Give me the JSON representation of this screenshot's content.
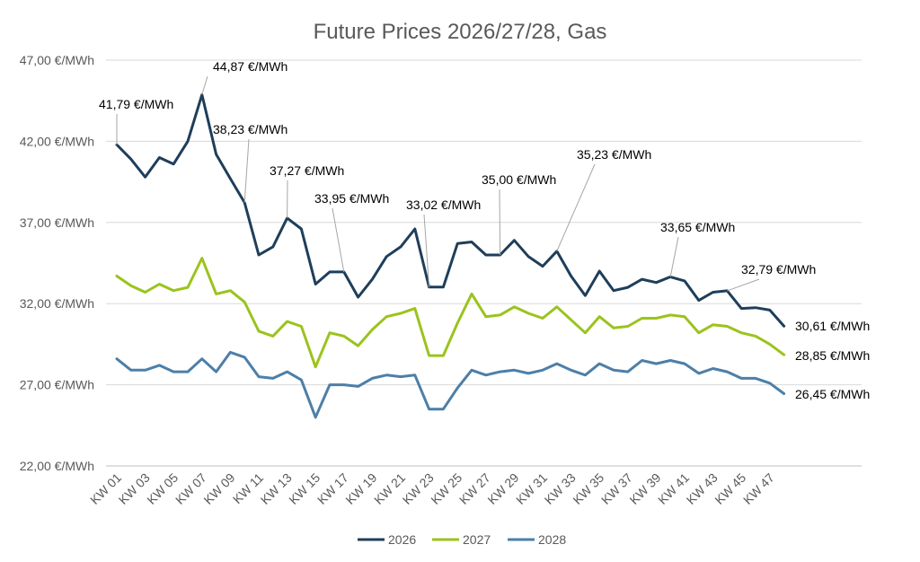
{
  "chart_data": {
    "type": "line",
    "title": "Future Prices 2026/27/28, Gas",
    "xlabel": "",
    "ylabel": "",
    "ylim": [
      22,
      47
    ],
    "yticks": [
      22,
      27,
      32,
      37,
      42,
      47
    ],
    "ytick_labels": [
      "22,00 €/MWh",
      "27,00 €/MWh",
      "32,00 €/MWh",
      "37,00 €/MWh",
      "42,00 €/MWh",
      "47,00 €/MWh"
    ],
    "grid": true,
    "legend_position": "bottom",
    "categories": [
      "KW 01",
      "KW 02",
      "KW 03",
      "KW 04",
      "KW 05",
      "KW 06",
      "KW 07",
      "KW 08",
      "KW 09",
      "KW 10",
      "KW 11",
      "KW 12",
      "KW 13",
      "KW 14",
      "KW 15",
      "KW 16",
      "KW 17",
      "KW 18",
      "KW 19",
      "KW 20",
      "KW 21",
      "KW 22",
      "KW 23",
      "KW 24",
      "KW 25",
      "KW 26",
      "KW 27",
      "KW 28",
      "KW 29",
      "KW 30",
      "KW 31",
      "KW 32",
      "KW 33",
      "KW 34",
      "KW 35",
      "KW 36",
      "KW 37",
      "KW 38",
      "KW 39",
      "KW 40",
      "KW 41",
      "KW 42",
      "KW 43",
      "KW 44",
      "KW 45",
      "KW 46",
      "KW 47",
      "KW 48"
    ],
    "tick_labels": [
      "KW 01",
      "KW 03",
      "KW 05",
      "KW 07",
      "KW 09",
      "KW 11",
      "KW 13",
      "KW 15",
      "KW 17",
      "KW 19",
      "KW 21",
      "KW 23",
      "KW 25",
      "KW 27",
      "KW 29",
      "KW 31",
      "KW 33",
      "KW 35",
      "KW 37",
      "KW 39",
      "KW 41",
      "KW 43",
      "KW 45",
      "KW 47"
    ],
    "series": [
      {
        "name": "2026",
        "color": "#1F3E5A",
        "values": [
          41.79,
          40.9,
          39.8,
          41.0,
          40.6,
          42.0,
          44.87,
          41.2,
          39.7,
          38.23,
          35.0,
          35.5,
          37.27,
          36.6,
          33.2,
          33.95,
          33.95,
          32.4,
          33.5,
          34.9,
          35.5,
          36.6,
          33.02,
          33.02,
          35.7,
          35.8,
          35.0,
          35.0,
          35.9,
          34.9,
          34.3,
          35.23,
          33.7,
          32.5,
          34.0,
          32.8,
          33.0,
          33.5,
          33.3,
          33.65,
          33.4,
          32.2,
          32.7,
          32.79,
          31.7,
          31.75,
          31.6,
          30.61
        ]
      },
      {
        "name": "2027",
        "color": "#9BC31D",
        "values": [
          33.7,
          33.1,
          32.7,
          33.2,
          32.8,
          33.0,
          34.8,
          32.6,
          32.8,
          32.1,
          30.3,
          30.0,
          30.9,
          30.6,
          28.1,
          30.2,
          30.0,
          29.4,
          30.4,
          31.2,
          31.4,
          31.7,
          28.8,
          28.8,
          30.8,
          32.6,
          31.2,
          31.3,
          31.8,
          31.4,
          31.1,
          31.8,
          31.0,
          30.2,
          31.2,
          30.5,
          30.6,
          31.1,
          31.1,
          31.3,
          31.2,
          30.2,
          30.7,
          30.6,
          30.2,
          30.0,
          29.5,
          28.85
        ]
      },
      {
        "name": "2028",
        "color": "#4C7FA8",
        "values": [
          28.6,
          27.9,
          27.9,
          28.2,
          27.8,
          27.8,
          28.6,
          27.8,
          29.0,
          28.7,
          27.5,
          27.4,
          27.8,
          27.3,
          25.0,
          27.0,
          27.0,
          26.9,
          27.4,
          27.6,
          27.5,
          27.6,
          25.5,
          25.5,
          26.8,
          27.9,
          27.6,
          27.8,
          27.9,
          27.7,
          27.9,
          28.3,
          27.9,
          27.6,
          28.3,
          27.9,
          27.8,
          28.5,
          28.3,
          28.5,
          28.3,
          27.7,
          28.0,
          27.8,
          27.4,
          27.4,
          27.1,
          26.45
        ]
      }
    ],
    "annotations": [
      {
        "series": "2026",
        "index": 0,
        "text": "41,79 €/MWh"
      },
      {
        "series": "2026",
        "index": 6,
        "text": "44,87 €/MWh"
      },
      {
        "series": "2026",
        "index": 9,
        "text": "38,23 €/MWh"
      },
      {
        "series": "2026",
        "index": 12,
        "text": "37,27 €/MWh"
      },
      {
        "series": "2026",
        "index": 16,
        "text": "33,95 €/MWh"
      },
      {
        "series": "2026",
        "index": 22,
        "text": "33,02 €/MWh"
      },
      {
        "series": "2026",
        "index": 27,
        "text": "35,00 €/MWh"
      },
      {
        "series": "2026",
        "index": 31,
        "text": "35,23 €/MWh"
      },
      {
        "series": "2026",
        "index": 39,
        "text": "33,65 €/MWh"
      },
      {
        "series": "2026",
        "index": 43,
        "text": "32,79 €/MWh"
      },
      {
        "series": "2026",
        "index": 47,
        "text": "30,61 €/MWh"
      },
      {
        "series": "2027",
        "index": 47,
        "text": "28,85 €/MWh"
      },
      {
        "series": "2028",
        "index": 47,
        "text": "26,45 €/MWh"
      }
    ]
  }
}
